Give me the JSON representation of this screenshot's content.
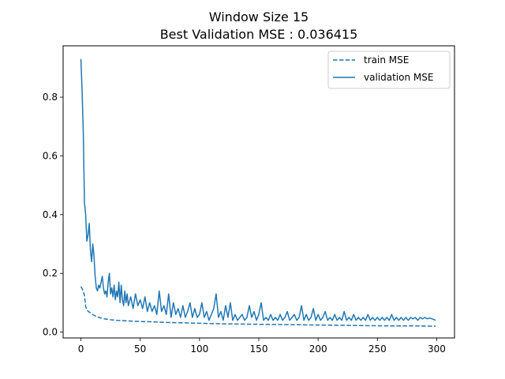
{
  "chart_data": {
    "type": "line",
    "title_line1": "Window Size 15",
    "title_line2": "Best Validation MSE : 0.036415",
    "xlabel": "",
    "ylabel": "",
    "xlim": [
      -15,
      315
    ],
    "ylim": [
      -0.02,
      0.975
    ],
    "grid": false,
    "legend_position": "top-right",
    "x_ticks": [
      0,
      50,
      100,
      150,
      200,
      250,
      300
    ],
    "y_ticks": [
      0.0,
      0.2,
      0.4,
      0.6,
      0.8
    ],
    "y_tick_labels": [
      "0.0",
      "0.2",
      "0.4",
      "0.6",
      "0.8"
    ],
    "line_color": "#1f77b4",
    "series": [
      {
        "name": "train MSE",
        "style": "dashed",
        "points": [
          [
            0,
            0.155
          ],
          [
            1,
            0.148
          ],
          [
            2,
            0.138
          ],
          [
            3,
            0.125
          ],
          [
            4,
            0.088
          ],
          [
            5,
            0.075
          ],
          [
            7,
            0.068
          ],
          [
            9,
            0.062
          ],
          [
            12,
            0.055
          ],
          [
            15,
            0.05
          ],
          [
            20,
            0.045
          ],
          [
            25,
            0.042
          ],
          [
            30,
            0.04
          ],
          [
            40,
            0.038
          ],
          [
            50,
            0.036
          ],
          [
            60,
            0.035
          ],
          [
            70,
            0.033
          ],
          [
            80,
            0.032
          ],
          [
            100,
            0.03
          ],
          [
            120,
            0.028
          ],
          [
            140,
            0.027
          ],
          [
            160,
            0.026
          ],
          [
            180,
            0.025
          ],
          [
            200,
            0.024
          ],
          [
            220,
            0.023
          ],
          [
            240,
            0.022
          ],
          [
            260,
            0.021
          ],
          [
            280,
            0.021
          ],
          [
            299,
            0.02
          ]
        ]
      },
      {
        "name": "validation MSE",
        "style": "solid",
        "points": [
          [
            0,
            0.93
          ],
          [
            1,
            0.82
          ],
          [
            2,
            0.68
          ],
          [
            3,
            0.44
          ],
          [
            4,
            0.4
          ],
          [
            5,
            0.31
          ],
          [
            6,
            0.33
          ],
          [
            7,
            0.37
          ],
          [
            8,
            0.28
          ],
          [
            9,
            0.24
          ],
          [
            10,
            0.3
          ],
          [
            11,
            0.26
          ],
          [
            12,
            0.19
          ],
          [
            13,
            0.15
          ],
          [
            14,
            0.14
          ],
          [
            15,
            0.16
          ],
          [
            16,
            0.15
          ],
          [
            17,
            0.17
          ],
          [
            18,
            0.19
          ],
          [
            19,
            0.15
          ],
          [
            20,
            0.13
          ],
          [
            21,
            0.14
          ],
          [
            22,
            0.12
          ],
          [
            23,
            0.17
          ],
          [
            24,
            0.2
          ],
          [
            25,
            0.13
          ],
          [
            26,
            0.15
          ],
          [
            27,
            0.12
          ],
          [
            28,
            0.16
          ],
          [
            29,
            0.11
          ],
          [
            30,
            0.14
          ],
          [
            31,
            0.12
          ],
          [
            32,
            0.17
          ],
          [
            33,
            0.1
          ],
          [
            34,
            0.16
          ],
          [
            35,
            0.11
          ],
          [
            36,
            0.09
          ],
          [
            37,
            0.14
          ],
          [
            38,
            0.1
          ],
          [
            39,
            0.13
          ],
          [
            40,
            0.09
          ],
          [
            42,
            0.12
          ],
          [
            44,
            0.08
          ],
          [
            46,
            0.13
          ],
          [
            48,
            0.09
          ],
          [
            50,
            0.11
          ],
          [
            52,
            0.08
          ],
          [
            54,
            0.12
          ],
          [
            56,
            0.07
          ],
          [
            58,
            0.1
          ],
          [
            60,
            0.07
          ],
          [
            62,
            0.09
          ],
          [
            64,
            0.06
          ],
          [
            66,
            0.14
          ],
          [
            68,
            0.07
          ],
          [
            70,
            0.09
          ],
          [
            72,
            0.06
          ],
          [
            74,
            0.13
          ],
          [
            76,
            0.05
          ],
          [
            78,
            0.1
          ],
          [
            80,
            0.06
          ],
          [
            82,
            0.08
          ],
          [
            84,
            0.05
          ],
          [
            86,
            0.09
          ],
          [
            88,
            0.05
          ],
          [
            90,
            0.07
          ],
          [
            92,
            0.1
          ],
          [
            94,
            0.05
          ],
          [
            96,
            0.08
          ],
          [
            98,
            0.05
          ],
          [
            100,
            0.06
          ],
          [
            102,
            0.1
          ],
          [
            104,
            0.05
          ],
          [
            106,
            0.07
          ],
          [
            108,
            0.04
          ],
          [
            110,
            0.06
          ],
          [
            112,
            0.08
          ],
          [
            114,
            0.13
          ],
          [
            116,
            0.05
          ],
          [
            118,
            0.07
          ],
          [
            120,
            0.04
          ],
          [
            122,
            0.09
          ],
          [
            124,
            0.05
          ],
          [
            126,
            0.1
          ],
          [
            128,
            0.04
          ],
          [
            130,
            0.06
          ],
          [
            132,
            0.04
          ],
          [
            134,
            0.05
          ],
          [
            136,
            0.06
          ],
          [
            138,
            0.04
          ],
          [
            140,
            0.05
          ],
          [
            142,
            0.09
          ],
          [
            144,
            0.05
          ],
          [
            146,
            0.07
          ],
          [
            148,
            0.04
          ],
          [
            150,
            0.06
          ],
          [
            152,
            0.1
          ],
          [
            154,
            0.04
          ],
          [
            156,
            0.05
          ],
          [
            158,
            0.04
          ],
          [
            160,
            0.06
          ],
          [
            162,
            0.04
          ],
          [
            164,
            0.05
          ],
          [
            166,
            0.04
          ],
          [
            168,
            0.06
          ],
          [
            170,
            0.04
          ],
          [
            172,
            0.05
          ],
          [
            174,
            0.07
          ],
          [
            176,
            0.04
          ],
          [
            178,
            0.05
          ],
          [
            180,
            0.06
          ],
          [
            182,
            0.04
          ],
          [
            184,
            0.05
          ],
          [
            186,
            0.09
          ],
          [
            188,
            0.04
          ],
          [
            190,
            0.06
          ],
          [
            192,
            0.04
          ],
          [
            194,
            0.05
          ],
          [
            196,
            0.08
          ],
          [
            198,
            0.04
          ],
          [
            200,
            0.06
          ],
          [
            202,
            0.04
          ],
          [
            204,
            0.05
          ],
          [
            206,
            0.07
          ],
          [
            208,
            0.04
          ],
          [
            210,
            0.05
          ],
          [
            212,
            0.04
          ],
          [
            214,
            0.06
          ],
          [
            216,
            0.04
          ],
          [
            218,
            0.05
          ],
          [
            220,
            0.04
          ],
          [
            222,
            0.07
          ],
          [
            224,
            0.04
          ],
          [
            226,
            0.05
          ],
          [
            228,
            0.04
          ],
          [
            230,
            0.06
          ],
          [
            232,
            0.04
          ],
          [
            234,
            0.05
          ],
          [
            236,
            0.04
          ],
          [
            238,
            0.05
          ],
          [
            240,
            0.04
          ],
          [
            242,
            0.06
          ],
          [
            244,
            0.04
          ],
          [
            246,
            0.05
          ],
          [
            248,
            0.04
          ],
          [
            250,
            0.05
          ],
          [
            252,
            0.04
          ],
          [
            254,
            0.05
          ],
          [
            256,
            0.04
          ],
          [
            258,
            0.05
          ],
          [
            260,
            0.04
          ],
          [
            262,
            0.06
          ],
          [
            264,
            0.04
          ],
          [
            266,
            0.05
          ],
          [
            268,
            0.04
          ],
          [
            270,
            0.05
          ],
          [
            272,
            0.04
          ],
          [
            274,
            0.05
          ],
          [
            276,
            0.04
          ],
          [
            278,
            0.05
          ],
          [
            280,
            0.045
          ],
          [
            282,
            0.05
          ],
          [
            284,
            0.04
          ],
          [
            286,
            0.05
          ],
          [
            288,
            0.045
          ],
          [
            290,
            0.05
          ],
          [
            292,
            0.045
          ],
          [
            294,
            0.048
          ],
          [
            296,
            0.045
          ],
          [
            298,
            0.042
          ],
          [
            299,
            0.04
          ]
        ]
      }
    ]
  }
}
